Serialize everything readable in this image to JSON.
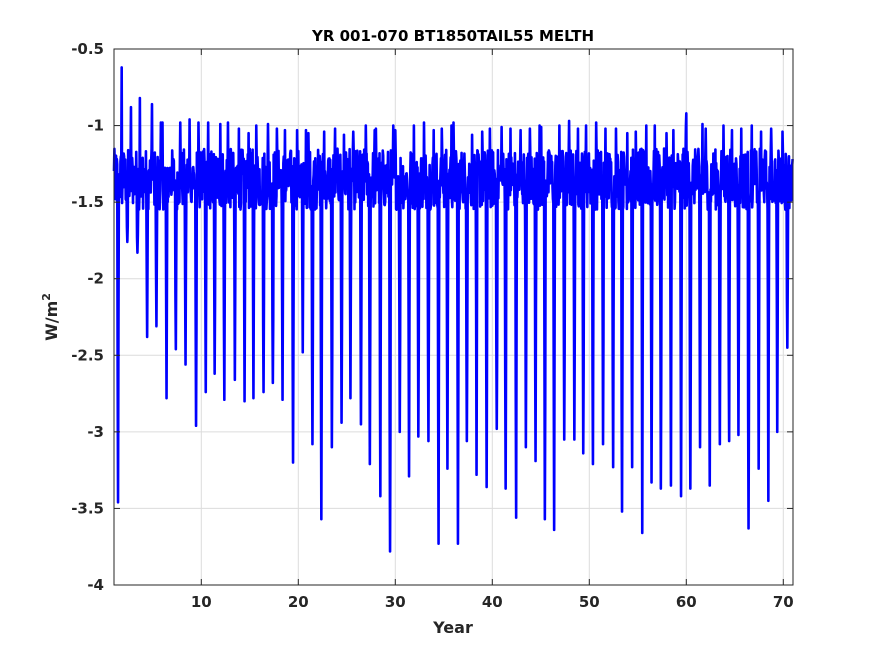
{
  "chart_data": {
    "type": "line",
    "title": "YR 001-070 BT1850TAIL55 MELTH",
    "xlabel": "Year",
    "ylabel": "W/m",
    "ylabel_superscript": "2",
    "xlim": [
      1,
      71
    ],
    "ylim": [
      -4,
      -0.5
    ],
    "xticks": [
      10,
      20,
      30,
      40,
      50,
      60,
      70
    ],
    "yticks": [
      -4,
      -3.5,
      -3,
      -2.5,
      -2,
      -1.5,
      -1,
      -0.5
    ],
    "grid": true,
    "legend": "none",
    "line_color": "#0000ff",
    "sampling": "monthly",
    "annual_minima": [
      -3.46,
      -1.76,
      -1.83,
      -2.38,
      -2.31,
      -2.78,
      -2.46,
      -2.56,
      -2.96,
      -2.74,
      -2.62,
      -2.79,
      -2.66,
      -2.8,
      -2.78,
      -2.74,
      -2.68,
      -2.79,
      -3.2,
      -2.48,
      -3.08,
      -3.57,
      -3.1,
      -2.94,
      -2.78,
      -2.95,
      -3.21,
      -3.42,
      -3.78,
      -3.0,
      -3.29,
      -3.03,
      -3.06,
      -3.73,
      -3.24,
      -3.73,
      -3.06,
      -3.28,
      -3.36,
      -2.98,
      -3.37,
      -3.56,
      -3.1,
      -3.19,
      -3.57,
      -3.64,
      -3.05,
      -3.05,
      -3.14,
      -3.21,
      -3.08,
      -3.23,
      -3.52,
      -3.23,
      -3.66,
      -3.33,
      -3.37,
      -3.35,
      -3.42,
      -3.37,
      -3.1,
      -3.35,
      -3.08,
      -3.06,
      -3.02,
      -3.63,
      -3.24,
      -3.45,
      -3.0,
      -2.45
    ],
    "annual_maxima": [
      -0.62,
      -0.88,
      -0.82,
      -0.86,
      -0.98,
      -0.98,
      -0.98,
      -0.96,
      -0.98,
      -0.98,
      -0.99,
      -0.98,
      -1.02,
      -1.05,
      -1.0,
      -0.99,
      -1.02,
      -1.03,
      -1.03,
      -1.03,
      -1.05,
      -1.04,
      -1.02,
      -1.06,
      -1.04,
      -1.0,
      -1.03,
      -1.02,
      -1.0,
      -1.03,
      -1.0,
      -0.98,
      -1.03,
      -1.02,
      -1.0,
      -0.98,
      -1.06,
      -1.04,
      -1.02,
      -1.01,
      -1.02,
      -1.03,
      -1.02,
      -1.0,
      -1.01,
      -1.0,
      -0.97,
      -1.02,
      -1.0,
      -0.98,
      -1.02,
      -1.02,
      -1.05,
      -1.04,
      -1.0,
      -1.0,
      -1.05,
      -1.03,
      -1.01,
      -0.92,
      -0.99,
      -1.02,
      -1.0,
      -1.03,
      -1.02,
      -1.0,
      -1.04,
      -1.02,
      -1.04,
      -1.26
    ],
    "typical_background_range": [
      -1.55,
      -1.15
    ]
  }
}
